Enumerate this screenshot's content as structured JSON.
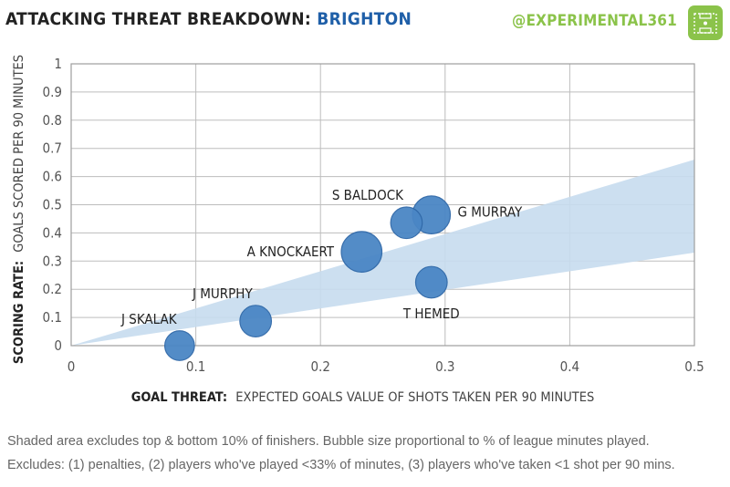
{
  "header": {
    "title_prefix": "ATTACKING THREAT BREAKDOWN:",
    "title_team": "BRIGHTON",
    "handle": "@EXPERIMENTAL361",
    "logo_icon": "pitch-icon"
  },
  "colors": {
    "bubble": "#4a86c5",
    "bubble_stroke": "#2f68a8",
    "band": "#c6dbee",
    "team": "#1f5fa8",
    "handle": "#8bc34a",
    "grid": "#bdbdbd"
  },
  "chart_data": {
    "type": "scatter",
    "title": "ATTACKING THREAT BREAKDOWN: BRIGHTON",
    "xlabel_bold": "GOAL THREAT:",
    "xlabel_rest": "EXPECTED GOALS VALUE OF SHOTS TAKEN PER 90 MINUTES",
    "ylabel_bold": "SCORING RATE:",
    "ylabel_rest": "GOALS SCORED PER 90 MINUTES",
    "xlim": [
      0,
      0.5
    ],
    "ylim": [
      0,
      1
    ],
    "xticks": [
      "0",
      "0.1",
      "0.2",
      "0.3",
      "0.4",
      "0.5"
    ],
    "yticks": [
      "0",
      "0.1",
      "0.2",
      "0.3",
      "0.4",
      "0.5",
      "0.6",
      "0.7",
      "0.8",
      "0.9",
      "1"
    ],
    "grid": true,
    "band": {
      "upper_at_max_x": 0.66,
      "lower_at_max_x": 0.33
    },
    "points": [
      {
        "name": "J SKALAK",
        "x": 0.087,
        "y": 0.0,
        "size": 0.55,
        "label_pos": "top-left"
      },
      {
        "name": "J MURPHY",
        "x": 0.148,
        "y": 0.087,
        "size": 0.62,
        "label_pos": "top-left"
      },
      {
        "name": "A KNOCKAERT",
        "x": 0.233,
        "y": 0.333,
        "size": 0.95,
        "label_pos": "left"
      },
      {
        "name": "S BALDOCK",
        "x": 0.269,
        "y": 0.436,
        "size": 0.62,
        "label_pos": "top-left"
      },
      {
        "name": "G MURRAY",
        "x": 0.289,
        "y": 0.464,
        "size": 0.85,
        "label_pos": "right"
      },
      {
        "name": "T HEMED",
        "x": 0.289,
        "y": 0.225,
        "size": 0.62,
        "label_pos": "bottom"
      }
    ]
  },
  "footer": {
    "line1": "Shaded area excludes top & bottom  10% of finishers. Bubble size proportional to % of league minutes played.",
    "line2": "Excludes: (1) penalties, (2) players who've played <33% of minutes, (3) players who've taken <1 shot per 90 mins."
  }
}
